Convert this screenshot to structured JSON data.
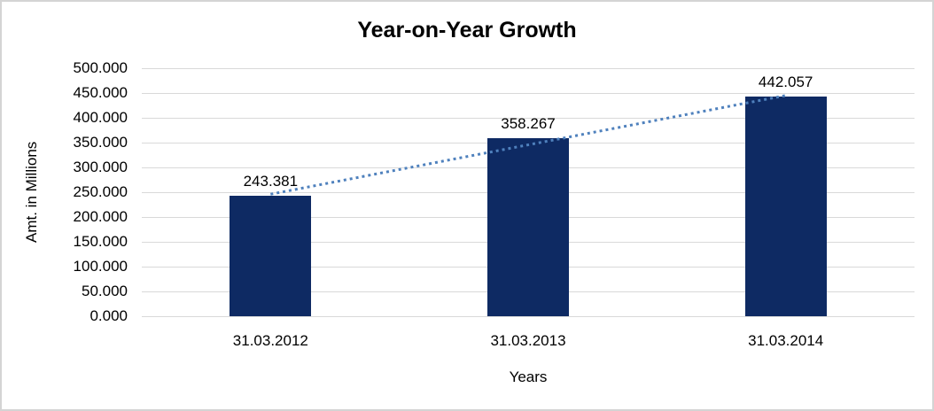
{
  "chart_data": {
    "type": "bar",
    "title": "Year-on-Year Growth",
    "xlabel": "Years",
    "ylabel": "Amt. in Millions",
    "categories": [
      "31.03.2012",
      "31.03.2013",
      "31.03.2014"
    ],
    "values": [
      243.381,
      358.267,
      442.057
    ],
    "value_labels": [
      "243.381",
      "358.267",
      "442.057"
    ],
    "ylim": [
      0,
      500
    ],
    "ytick_step": 50,
    "y_ticks": [
      "500.000",
      "450.000",
      "400.000",
      "350.000",
      "300.000",
      "250.000",
      "200.000",
      "150.000",
      "100.000",
      "50.000",
      "0.000"
    ],
    "grid": true,
    "legend": false,
    "trendline": {
      "type": "linear",
      "style": "dotted",
      "start_value": 246,
      "end_value": 445,
      "start_category_index": 0,
      "end_category_index": 2
    },
    "colors": {
      "bar": "#0e2a63",
      "trendline": "#4f81bd",
      "gridline": "#d9d9d9",
      "text": "#000000",
      "background": "#ffffff",
      "border": "#d4d4d4"
    }
  }
}
